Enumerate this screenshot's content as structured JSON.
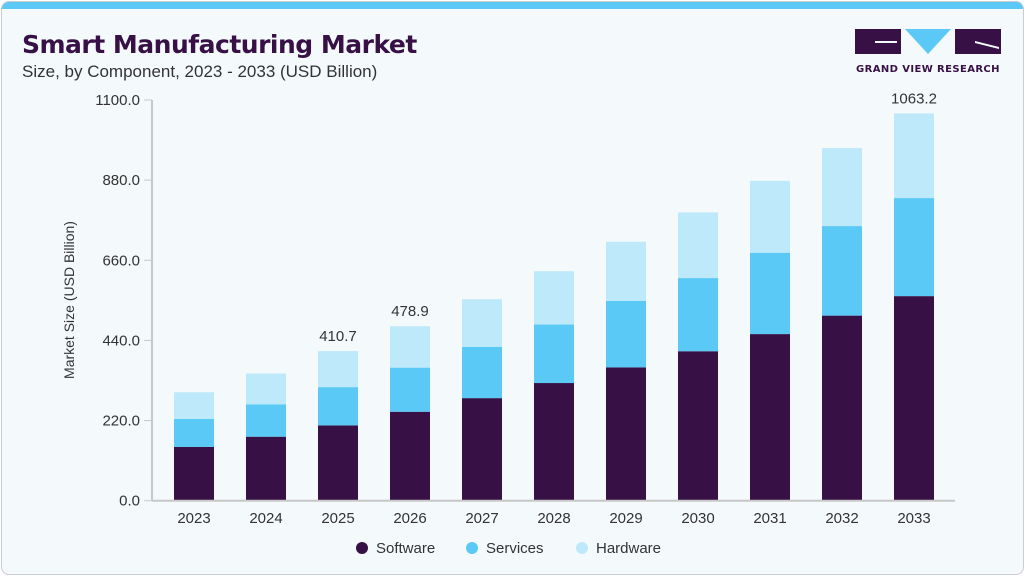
{
  "header": {
    "title": "Smart Manufacturing Market",
    "subtitle": "Size, by Component, 2023 - 2033 (USD Billion)",
    "logo_text": "GRAND VIEW RESEARCH"
  },
  "colors": {
    "accent": "#5bc8f5",
    "brand": "#371046"
  },
  "chart_data": {
    "type": "bar",
    "stacked": true,
    "title": "Smart Manufacturing Market",
    "subtitle": "Size, by Component, 2023 - 2033 (USD Billion)",
    "xlabel": "",
    "ylabel": "Market Size (USD Billion)",
    "ylim": [
      0,
      1100
    ],
    "yticks": [
      "0.0",
      "220.0",
      "440.0",
      "660.0",
      "880.0",
      "1100.0"
    ],
    "grid": false,
    "legend_position": "bottom",
    "categories": [
      "2023",
      "2024",
      "2025",
      "2026",
      "2027",
      "2028",
      "2029",
      "2030",
      "2031",
      "2032",
      "2033"
    ],
    "series": [
      {
        "name": "Software",
        "color": "#371046",
        "values": [
          147.6,
          175.7,
          206.7,
          244.2,
          281.6,
          323.0,
          366.1,
          410.3,
          457.4,
          508.1,
          561.6
        ]
      },
      {
        "name": "Services",
        "color": "#5bc9f6",
        "values": [
          76.9,
          89.0,
          105.1,
          121.1,
          140.9,
          160.6,
          182.2,
          200.9,
          223.3,
          245.8,
          269.2
        ]
      },
      {
        "name": "Hardware",
        "color": "#bde9fa",
        "values": [
          73.2,
          84.5,
          98.9,
          113.6,
          130.6,
          146.4,
          162.6,
          180.2,
          197.2,
          214.1,
          232.4
        ]
      }
    ],
    "data_labels": [
      {
        "category": "2025",
        "text": "410.7"
      },
      {
        "category": "2026",
        "text": "478.9"
      },
      {
        "category": "2033",
        "text": "1063.2"
      }
    ]
  }
}
